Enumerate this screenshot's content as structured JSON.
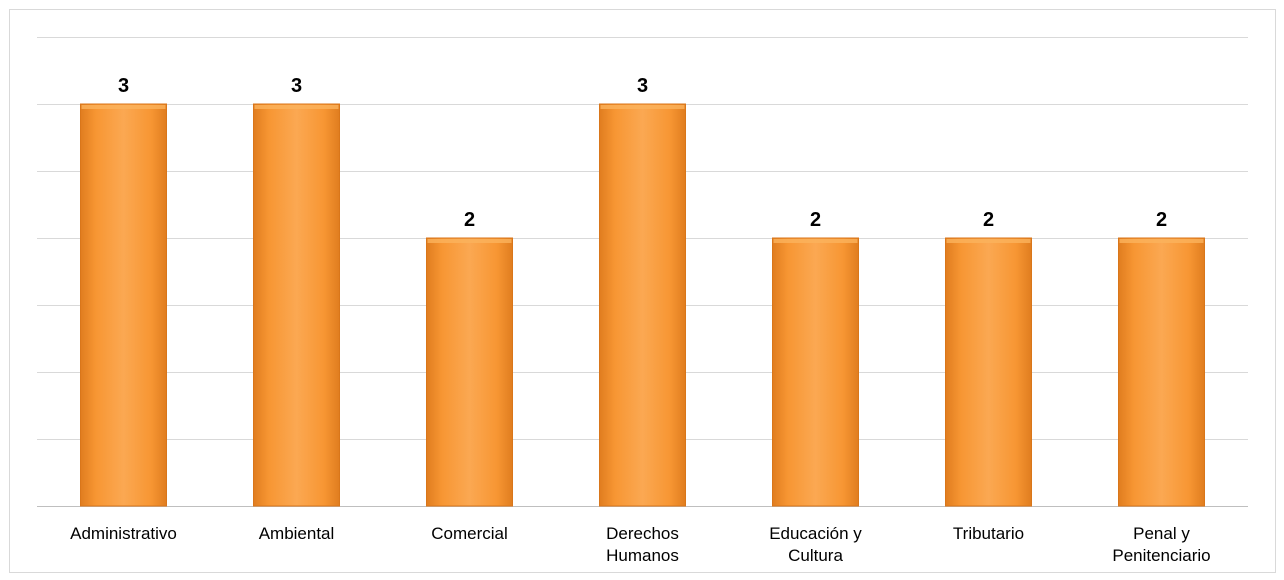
{
  "chart_data": {
    "type": "bar",
    "categories": [
      [
        "Administrativo"
      ],
      [
        "Ambiental"
      ],
      [
        "Comercial"
      ],
      [
        "Derechos",
        "Humanos"
      ],
      [
        "Educación y",
        "Cultura"
      ],
      [
        "Tributario"
      ],
      [
        "Penal y",
        "Penitenciario"
      ]
    ],
    "values": [
      3,
      3,
      2,
      3,
      2,
      2,
      2
    ],
    "data_labels": [
      "3",
      "3",
      "2",
      "3",
      "2",
      "2",
      "2"
    ],
    "title": "",
    "xlabel": "",
    "ylabel": "",
    "ylim": [
      0,
      3.5
    ],
    "gridlines": true,
    "grid_step": 0.5,
    "y_tick_labels_visible": false,
    "legend": "none",
    "colors": {
      "bar_fill": "#f7962c",
      "bar_highlight": "#fbb35c",
      "bar_edge": "#d9761a",
      "gridline": "#d9d9d9"
    }
  }
}
